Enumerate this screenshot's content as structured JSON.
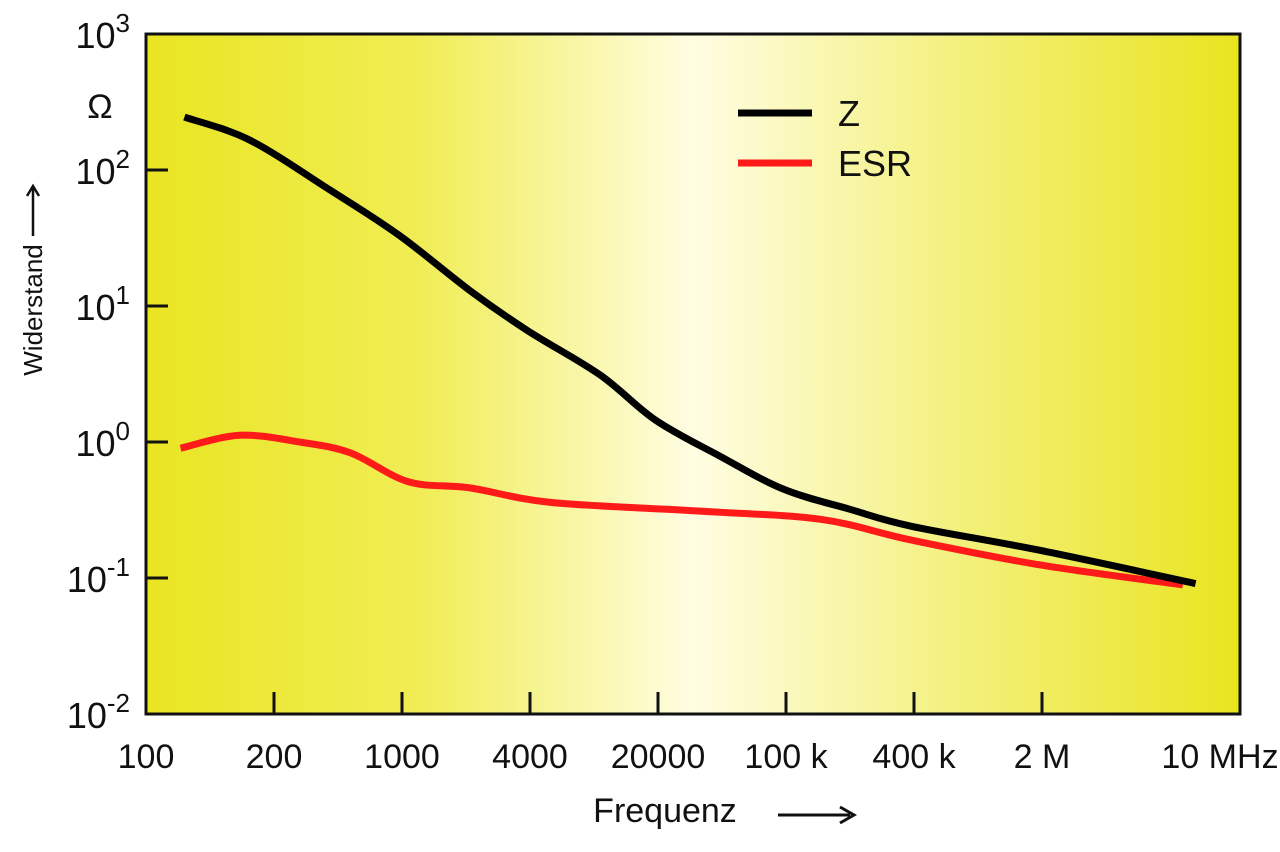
{
  "chart_data": {
    "type": "line",
    "title": "",
    "xlabel": "Frequenz",
    "ylabel": "Widerstand",
    "yunit": "Ω",
    "yscale": "log",
    "ylim": [
      0.01,
      1000
    ],
    "y_tick_labels": [
      {
        "base": "10",
        "exp": "3",
        "value": 1000
      },
      {
        "base": "10",
        "exp": "2",
        "value": 100
      },
      {
        "base": "10",
        "exp": "1",
        "value": 10
      },
      {
        "base": "10",
        "exp": "0",
        "value": 1
      },
      {
        "base": "10",
        "exp": "-1",
        "value": 0.1
      },
      {
        "base": "10",
        "exp": "-2",
        "value": 0.01
      }
    ],
    "x_tick_labels": [
      "100",
      "200",
      "1000",
      "4000",
      "20000",
      "100 k",
      "400 k",
      "2 M",
      "10 MHz"
    ],
    "x_note": "x values are positions on the axis in tick-index units (0 = 100, 8 = 10 MHz)",
    "legend_position": "top-right",
    "series": [
      {
        "name": "Z",
        "color": "#000000",
        "x": [
          0.3,
          0.81,
          1.44,
          1.98,
          2.53,
          2.98,
          3.55,
          3.98,
          4.48,
          4.98,
          5.5,
          5.98,
          6.98,
          8.2
        ],
        "y": [
          245,
          166,
          71,
          33,
          13,
          6.6,
          3.1,
          1.45,
          0.79,
          0.45,
          0.32,
          0.24,
          0.16,
          0.091
        ]
      },
      {
        "name": "ESR",
        "color": "#ff1a1a",
        "x": [
          0.27,
          0.73,
          1.2,
          1.6,
          2.05,
          2.53,
          3.16,
          4.33,
          5.27,
          5.98,
          6.98,
          8.1
        ],
        "y": [
          0.9,
          1.12,
          1.0,
          0.83,
          0.51,
          0.46,
          0.36,
          0.31,
          0.27,
          0.19,
          0.125,
          0.089
        ]
      }
    ]
  }
}
